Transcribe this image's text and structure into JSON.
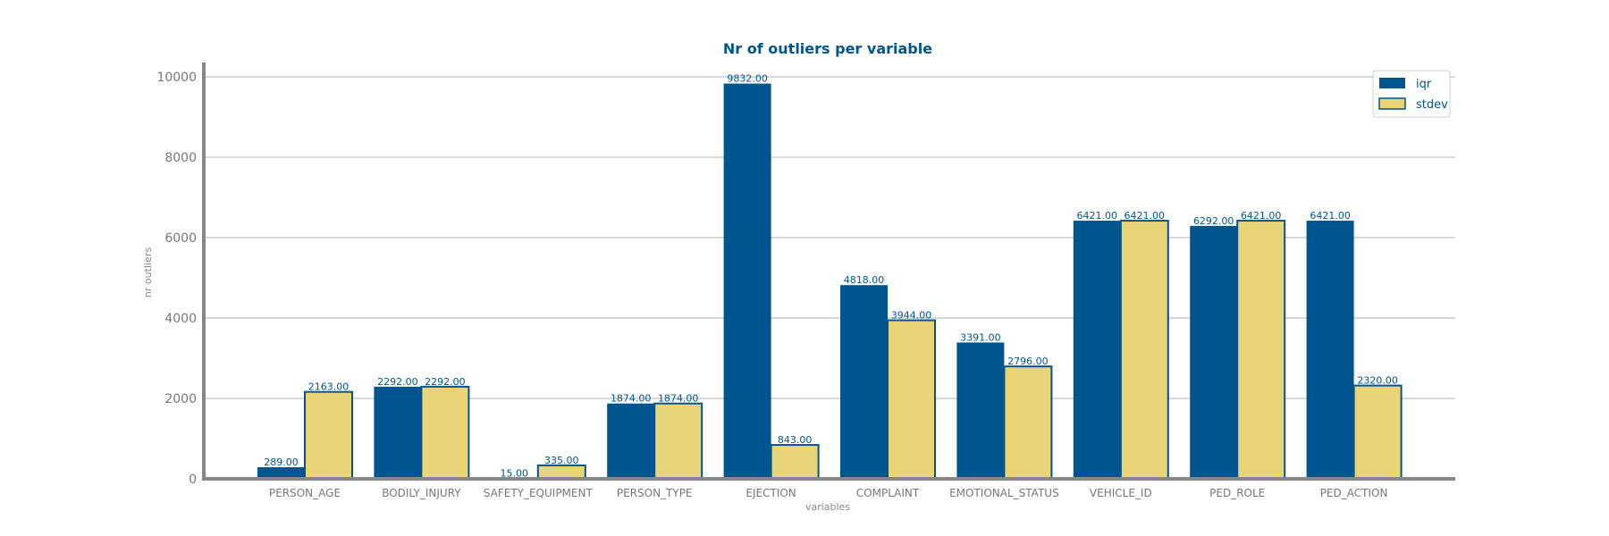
{
  "chart_data": {
    "type": "bar",
    "title": "Nr of outliers per variable",
    "xlabel": "variables",
    "ylabel": "nr outliers",
    "ylim": [
      0,
      10000
    ],
    "yticks": [
      0,
      2000,
      4000,
      6000,
      8000,
      10000
    ],
    "grid": "horizontal",
    "legend_position": "top-right",
    "categories": [
      "PERSON_AGE",
      "BODILY_INJURY",
      "SAFETY_EQUIPMENT",
      "PERSON_TYPE",
      "EJECTION",
      "COMPLAINT",
      "EMOTIONAL_STATUS",
      "VEHICLE_ID",
      "PED_ROLE",
      "PED_ACTION"
    ],
    "series": [
      {
        "name": "iqr",
        "values": [
          289,
          2292,
          15,
          1874,
          9832,
          4818,
          3391,
          6421,
          6292,
          6421
        ],
        "labels": [
          "289.00",
          "2292.00",
          "15.00",
          "1874.00",
          "9832.00",
          "4818.00",
          "3391.00",
          "6421.00",
          "6292.00",
          "6421.00"
        ]
      },
      {
        "name": "stdev",
        "values": [
          2163,
          2292,
          335,
          1874,
          843,
          3944,
          2796,
          6421,
          6421,
          2320
        ],
        "labels": [
          "2163.00",
          "2292.00",
          "335.00",
          "1874.00",
          "843.00",
          "3944.00",
          "2796.00",
          "6421.00",
          "6421.00",
          "2320.00"
        ]
      }
    ],
    "colors": {
      "iqr_fill": "#00558f",
      "stdev_fill": "#e9d477",
      "stdev_edge": "#00558f",
      "title": "#00558f",
      "label": "#00558f",
      "axis": "#888888",
      "grid": "#cccccc"
    }
  }
}
